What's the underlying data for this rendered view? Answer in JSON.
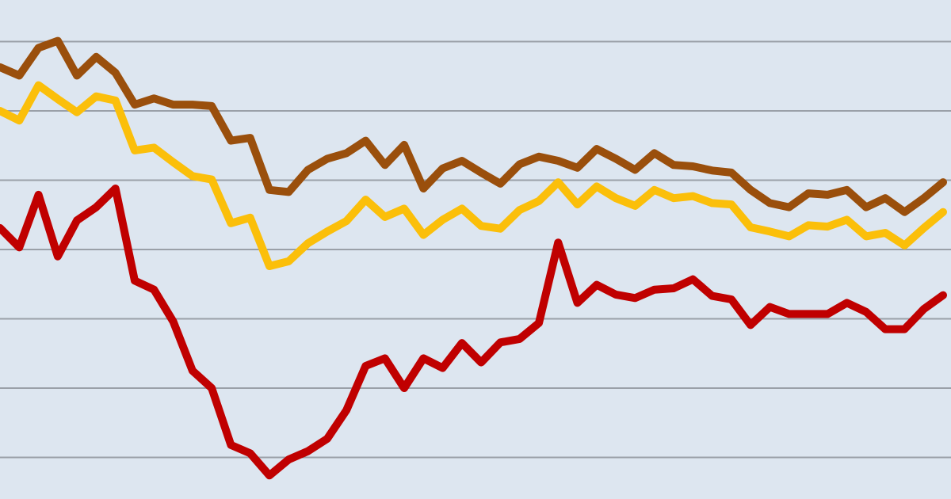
{
  "chart_data": {
    "type": "line",
    "ylim": [
      0.4,
      7.6
    ],
    "yticks": [
      1,
      2,
      3,
      4,
      5,
      6,
      7
    ],
    "grid": true,
    "series": [
      {
        "color": "#9a4f0c",
        "values": [
          6.63,
          6.51,
          6.91,
          7.01,
          6.51,
          6.78,
          6.55,
          6.09,
          6.18,
          6.09,
          6.09,
          6.07,
          5.57,
          5.61,
          4.86,
          4.83,
          5.15,
          5.31,
          5.39,
          5.57,
          5.22,
          5.51,
          4.88,
          5.17,
          5.28,
          5.11,
          4.95,
          5.23,
          5.34,
          5.28,
          5.18,
          5.45,
          5.31,
          5.15,
          5.39,
          5.22,
          5.2,
          5.14,
          5.11,
          4.86,
          4.67,
          4.61,
          4.81,
          4.79,
          4.86,
          4.61,
          4.74,
          4.54,
          4.74,
          4.97
        ]
      },
      {
        "color": "#fbbf0a",
        "values": [
          6.0,
          5.86,
          6.37,
          6.17,
          5.98,
          6.21,
          6.15,
          5.43,
          5.47,
          5.26,
          5.06,
          5.01,
          4.38,
          4.46,
          3.76,
          3.83,
          4.09,
          4.26,
          4.41,
          4.72,
          4.47,
          4.59,
          4.21,
          4.43,
          4.59,
          4.34,
          4.3,
          4.57,
          4.7,
          4.97,
          4.65,
          4.91,
          4.74,
          4.63,
          4.86,
          4.74,
          4.77,
          4.67,
          4.65,
          4.32,
          4.26,
          4.19,
          4.35,
          4.33,
          4.43,
          4.19,
          4.24,
          4.06,
          4.31,
          4.54
        ]
      },
      {
        "color": "#c00000",
        "values": [
          4.31,
          4.03,
          4.79,
          3.9,
          4.42,
          4.61,
          4.88,
          3.55,
          3.42,
          2.96,
          2.25,
          2.0,
          1.18,
          1.06,
          0.74,
          0.97,
          1.09,
          1.27,
          1.68,
          2.32,
          2.43,
          2.0,
          2.43,
          2.29,
          2.65,
          2.37,
          2.66,
          2.71,
          2.94,
          4.1,
          3.23,
          3.49,
          3.35,
          3.3,
          3.42,
          3.44,
          3.57,
          3.33,
          3.28,
          2.91,
          3.17,
          3.07,
          3.07,
          3.07,
          3.23,
          3.1,
          2.85,
          2.85,
          3.14,
          3.34
        ]
      }
    ]
  }
}
